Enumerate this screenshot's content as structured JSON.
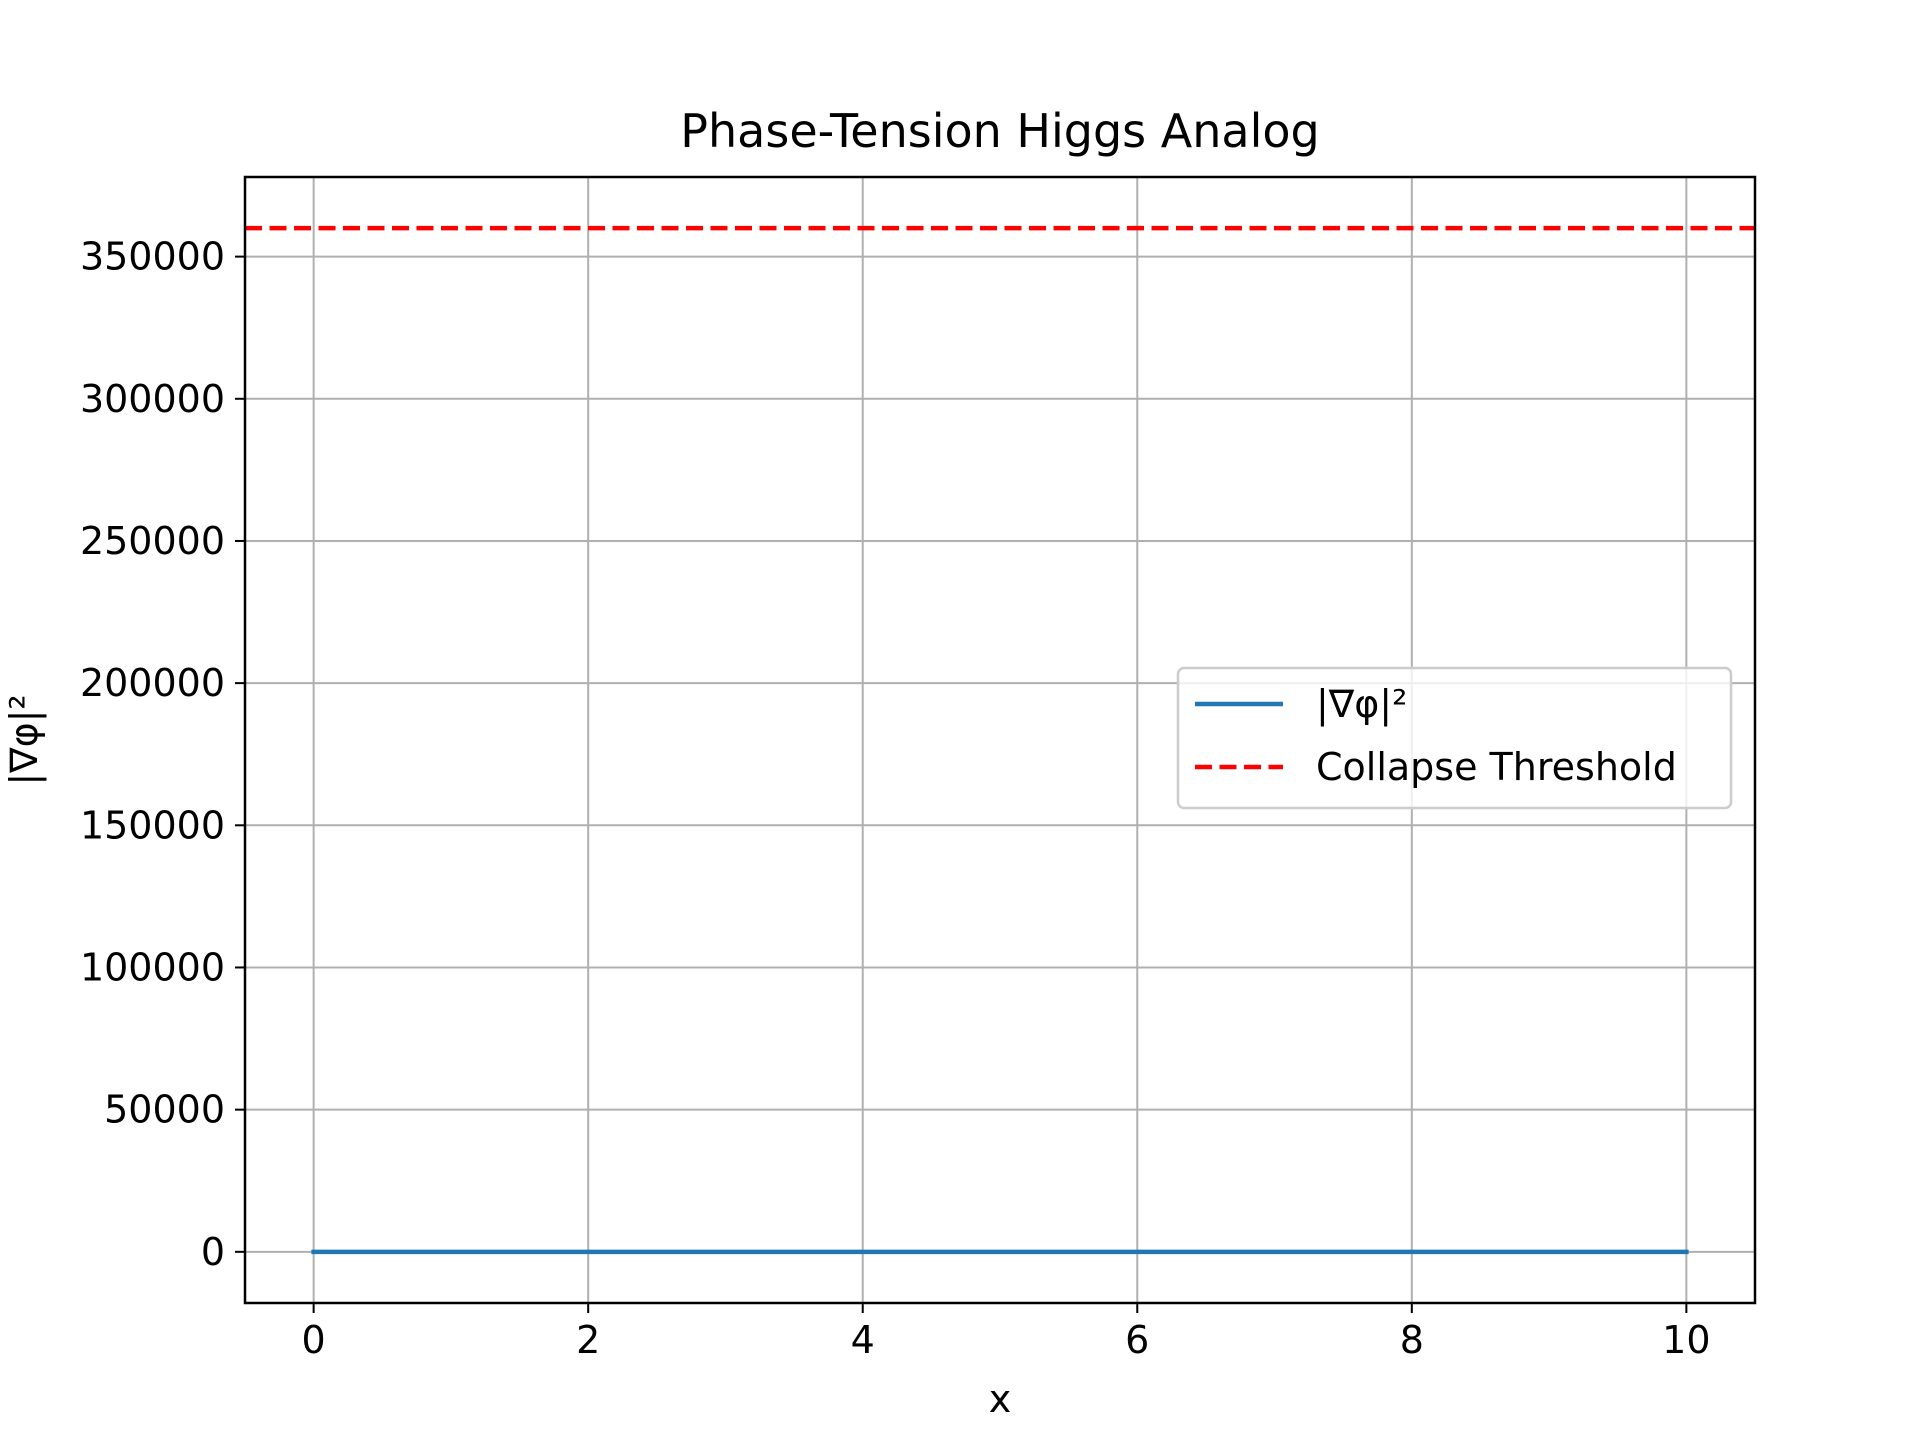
{
  "chart_data": {
    "type": "line",
    "title": "Phase-Tension Higgs Analog",
    "xlabel": "x",
    "ylabel": "|∇φ|²",
    "xlim": [
      -0.5,
      10.5
    ],
    "ylim": [
      -18000,
      378000
    ],
    "xticks": [
      0,
      2,
      4,
      6,
      8,
      10
    ],
    "xtick_labels": [
      "0",
      "2",
      "4",
      "6",
      "8",
      "10"
    ],
    "yticks": [
      0,
      50000,
      100000,
      150000,
      200000,
      250000,
      300000,
      350000
    ],
    "ytick_labels": [
      "0",
      "50000",
      "100000",
      "150000",
      "200000",
      "250000",
      "300000",
      "350000"
    ],
    "grid": true,
    "legend_position": "center-right",
    "series": [
      {
        "name": "|∇φ|²",
        "color": "#1f77b4",
        "style": "solid",
        "x": [
          0,
          1,
          2,
          3,
          4,
          5,
          6,
          7,
          8,
          9,
          10
        ],
        "y": [
          0,
          0,
          0,
          0,
          0,
          0,
          0,
          0,
          0,
          0,
          0
        ]
      },
      {
        "name": "Collapse Threshold",
        "color": "#ff0000",
        "style": "dashed",
        "type": "hline",
        "y": 360000
      }
    ]
  }
}
